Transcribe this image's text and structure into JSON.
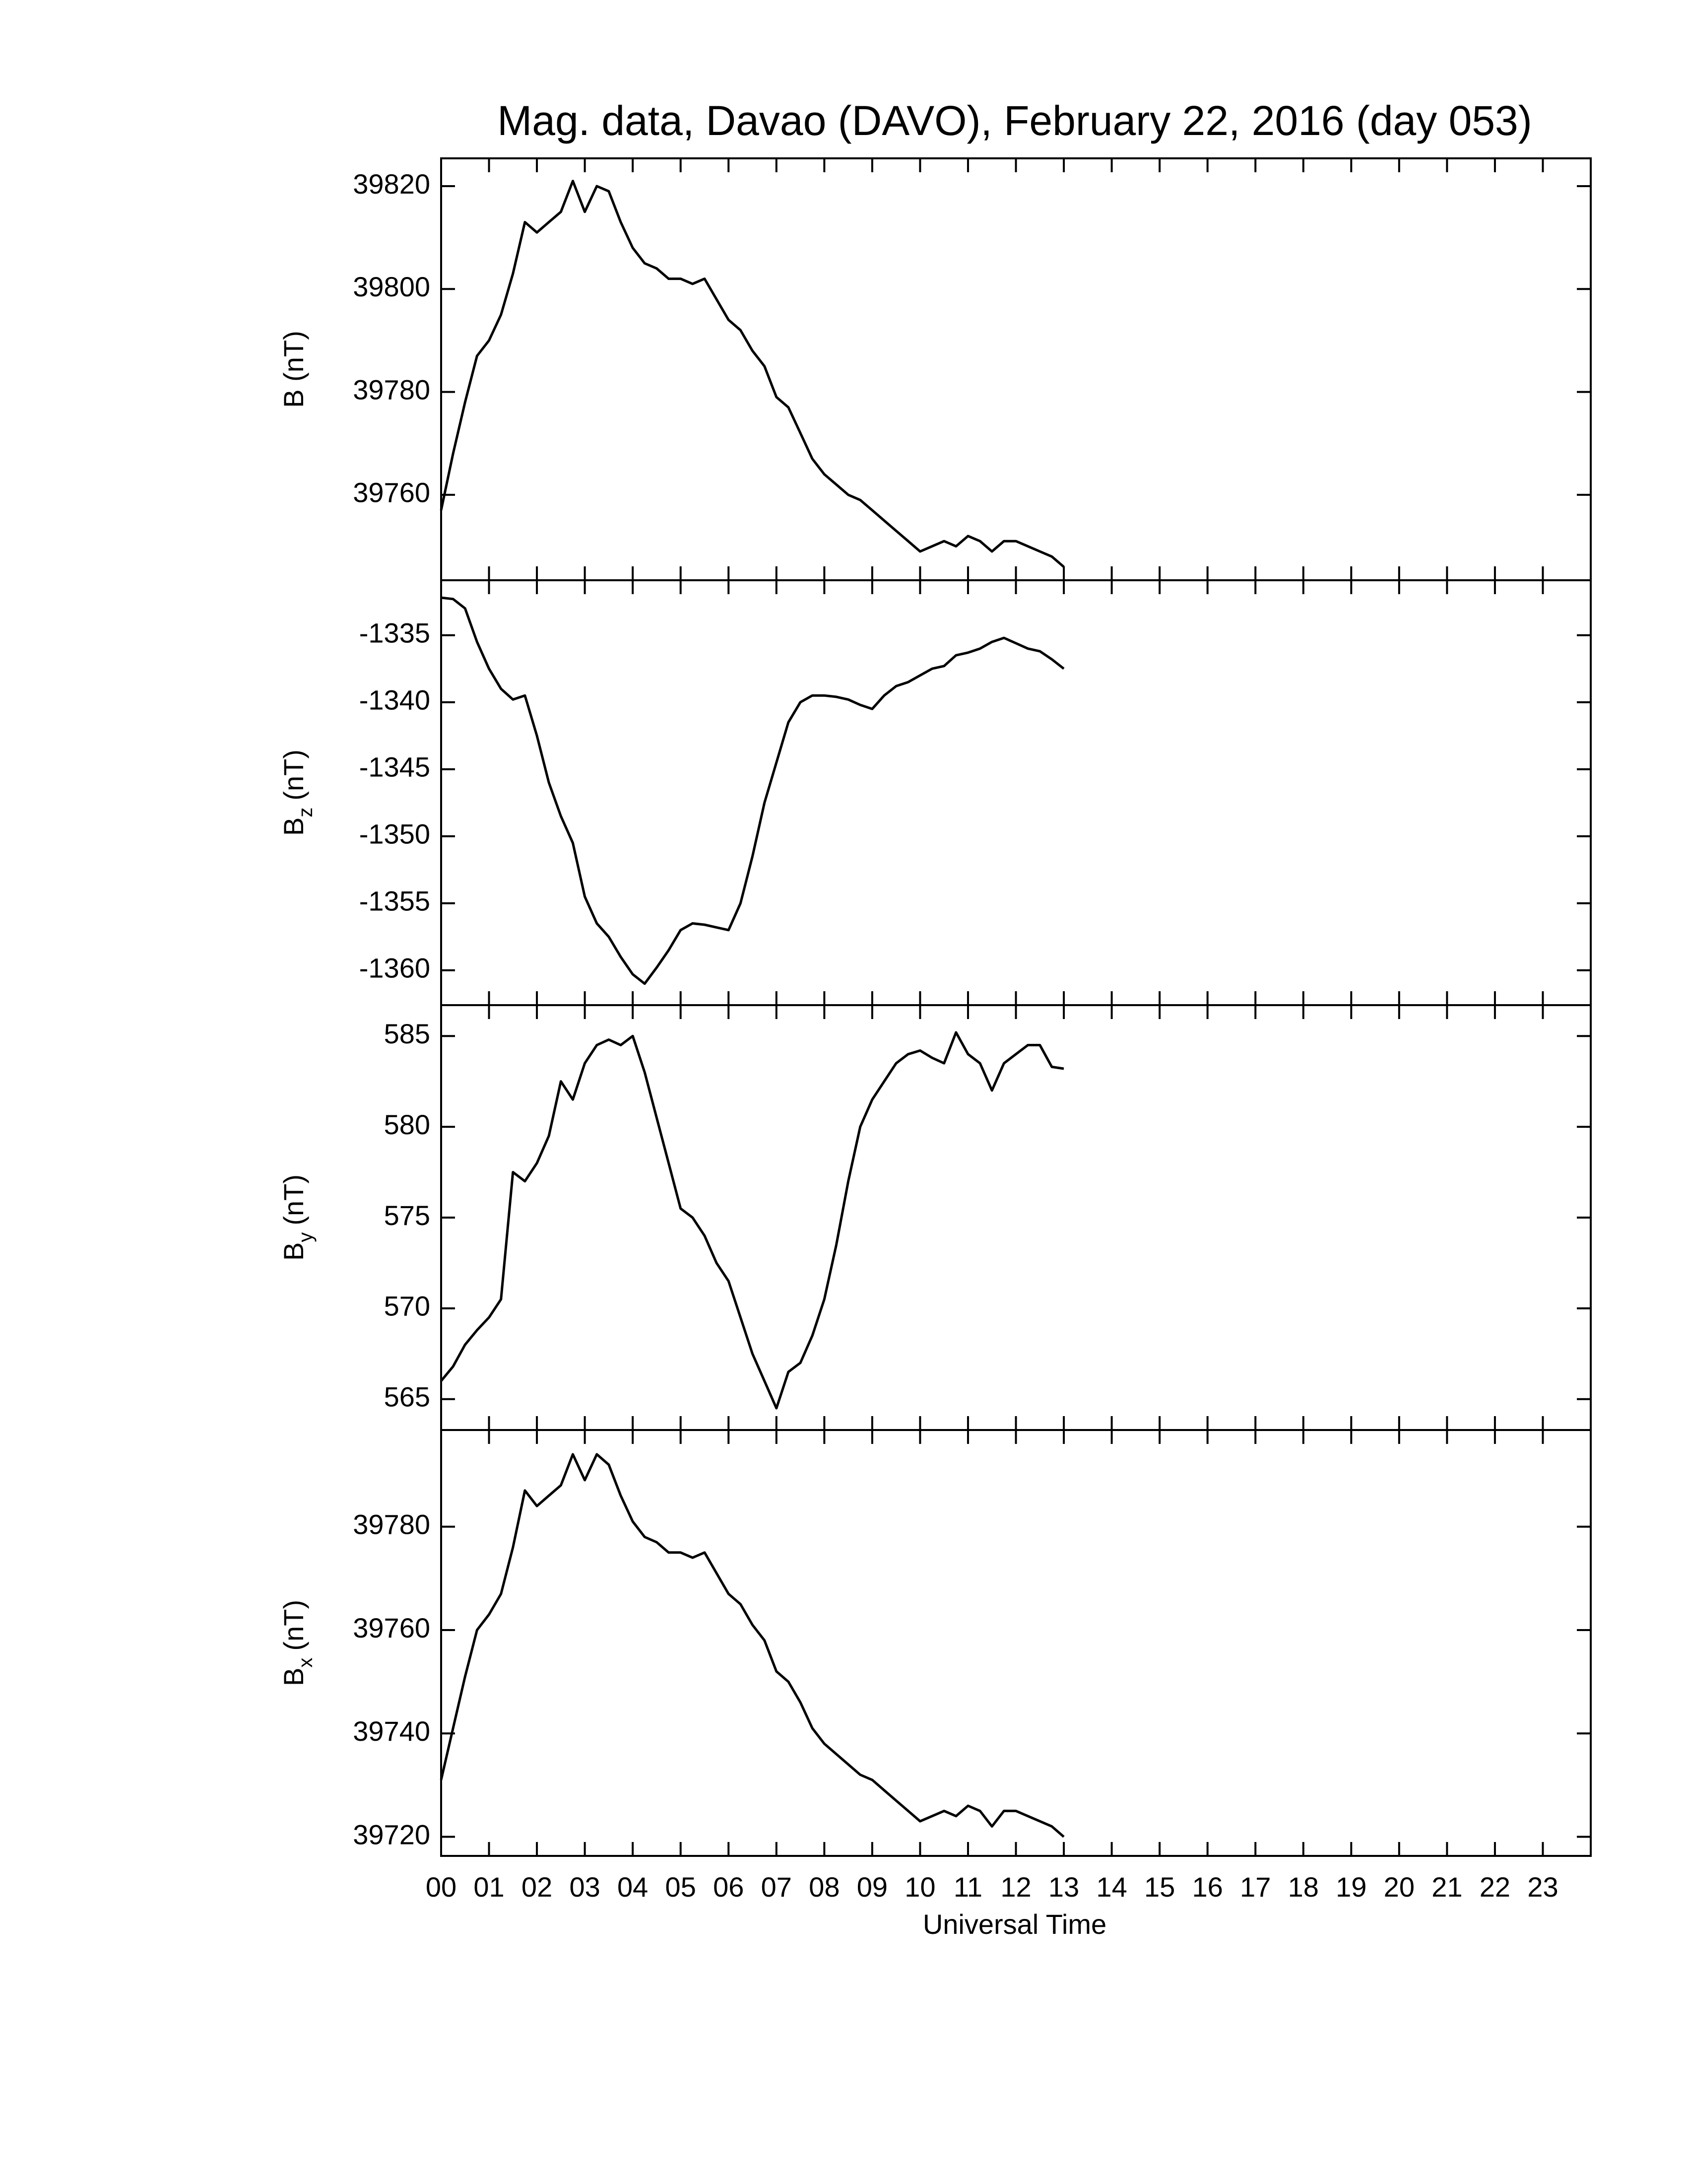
{
  "chart_data": [
    {
      "type": "line",
      "title": "Mag. data, Davao (DAVO), February 22, 2016 (day 053)",
      "ylabel": [
        "B (nT)"
      ],
      "color": "#000000",
      "x": [
        0,
        0.25,
        0.5,
        0.75,
        1,
        1.25,
        1.5,
        1.75,
        2,
        2.25,
        2.5,
        2.75,
        3,
        3.25,
        3.5,
        3.75,
        4,
        4.25,
        4.5,
        4.75,
        5,
        5.25,
        5.5,
        5.75,
        6,
        6.25,
        6.5,
        6.75,
        7,
        7.25,
        7.5,
        7.75,
        8,
        8.25,
        8.5,
        8.75,
        9,
        9.25,
        9.5,
        9.75,
        10,
        10.25,
        10.5,
        10.75,
        11,
        11.25,
        11.5,
        11.75,
        12,
        12.25,
        12.5,
        12.75,
        13
      ],
      "values": [
        39757,
        39768,
        39778,
        39787,
        39790,
        39795,
        39803,
        39813,
        39811,
        39813,
        39815,
        39821,
        39815,
        39820,
        39819,
        39813,
        39808,
        39805,
        39804,
        39802,
        39802,
        39801,
        39802,
        39798,
        39794,
        39792,
        39788,
        39785,
        39779,
        39777,
        39772,
        39767,
        39764,
        39762,
        39760,
        39759,
        39757,
        39755,
        39753,
        39751,
        39749,
        39750,
        39751,
        39750,
        39752,
        39751,
        39749,
        39751,
        39751,
        39750,
        39749,
        39748,
        39746
      ],
      "xlim": [
        0,
        24
      ],
      "ylim": [
        39743.4,
        39825.4
      ],
      "yticks": [
        39760,
        39780,
        39800,
        39820
      ]
    },
    {
      "type": "line",
      "ylabel": [
        "B",
        "z",
        "(nT)"
      ],
      "color": "#000000",
      "x": [
        0,
        0.25,
        0.5,
        0.75,
        1,
        1.25,
        1.5,
        1.75,
        2,
        2.25,
        2.5,
        2.75,
        3,
        3.25,
        3.5,
        3.75,
        4,
        4.25,
        4.5,
        4.75,
        5,
        5.25,
        5.5,
        5.75,
        6,
        6.25,
        6.5,
        6.75,
        7,
        7.25,
        7.5,
        7.75,
        8,
        8.25,
        8.5,
        8.75,
        9,
        9.25,
        9.5,
        9.75,
        10,
        10.25,
        10.5,
        10.75,
        11,
        11.25,
        11.5,
        11.75,
        12,
        12.25,
        12.5,
        12.75,
        13
      ],
      "values": [
        -1332.2,
        -1332.3,
        -1333,
        -1335.5,
        -1337.5,
        -1339,
        -1339.8,
        -1339.5,
        -1342.5,
        -1346,
        -1348.5,
        -1350.5,
        -1354.5,
        -1356.5,
        -1357.5,
        -1359,
        -1360.3,
        -1361,
        -1359.8,
        -1358.5,
        -1357,
        -1356.5,
        -1356.6,
        -1356.8,
        -1357,
        -1355,
        -1351.5,
        -1347.5,
        -1344.5,
        -1341.5,
        -1340,
        -1339.5,
        -1339.5,
        -1339.6,
        -1339.8,
        -1340.2,
        -1340.5,
        -1339.5,
        -1338.8,
        -1338.5,
        -1338,
        -1337.5,
        -1337.3,
        -1336.5,
        -1336.3,
        -1336,
        -1335.5,
        -1335.2,
        -1335.6,
        -1336,
        -1336.2,
        -1336.8,
        -1337.5
      ],
      "xlim": [
        0,
        24
      ],
      "ylim": [
        -1362.6,
        -1330.9
      ],
      "yticks": [
        -1360,
        -1355,
        -1350,
        -1345,
        -1340,
        -1335
      ]
    },
    {
      "type": "line",
      "ylabel": [
        "B",
        "y",
        "(nT)"
      ],
      "color": "#000000",
      "x": [
        0,
        0.25,
        0.5,
        0.75,
        1,
        1.25,
        1.5,
        1.75,
        2,
        2.25,
        2.5,
        2.75,
        3,
        3.25,
        3.5,
        3.75,
        4,
        4.25,
        4.5,
        4.75,
        5,
        5.25,
        5.5,
        5.75,
        6,
        6.25,
        6.5,
        6.75,
        7,
        7.25,
        7.5,
        7.75,
        8,
        8.25,
        8.5,
        8.75,
        9,
        9.25,
        9.5,
        9.75,
        10,
        10.25,
        10.5,
        10.75,
        11,
        11.25,
        11.5,
        11.75,
        12,
        12.25,
        12.5,
        12.75,
        13
      ],
      "values": [
        566,
        566.8,
        568,
        568.8,
        569.5,
        570.5,
        577.5,
        577,
        578,
        579.5,
        582.5,
        581.5,
        583.5,
        584.5,
        584.8,
        584.5,
        585,
        583,
        580.5,
        578,
        575.5,
        575,
        574,
        572.5,
        571.5,
        569.5,
        567.5,
        566,
        564.5,
        566.5,
        567,
        568.5,
        570.5,
        573.5,
        577,
        580,
        581.5,
        582.5,
        583.5,
        584,
        584.2,
        583.8,
        583.5,
        585.2,
        584,
        583.5,
        582,
        583.5,
        584,
        584.5,
        584.5,
        583.3,
        583.2
      ],
      "xlim": [
        0,
        24
      ],
      "ylim": [
        563.3,
        586.7
      ],
      "yticks": [
        565,
        570,
        575,
        580,
        585
      ]
    },
    {
      "type": "line",
      "ylabel": [
        "B",
        "x",
        "(nT)"
      ],
      "color": "#000000",
      "xlabel": "Universal Time",
      "x": [
        0,
        0.25,
        0.5,
        0.75,
        1,
        1.25,
        1.5,
        1.75,
        2,
        2.25,
        2.5,
        2.75,
        3,
        3.25,
        3.5,
        3.75,
        4,
        4.25,
        4.5,
        4.75,
        5,
        5.25,
        5.5,
        5.75,
        6,
        6.25,
        6.5,
        6.75,
        7,
        7.25,
        7.5,
        7.75,
        8,
        8.25,
        8.5,
        8.75,
        9,
        9.25,
        9.5,
        9.75,
        10,
        10.25,
        10.5,
        10.75,
        11,
        11.25,
        11.5,
        11.75,
        12,
        12.25,
        12.5,
        12.75,
        13
      ],
      "values": [
        39731,
        39741,
        39751,
        39760,
        39763,
        39767,
        39776,
        39787,
        39784,
        39786,
        39788,
        39794,
        39789,
        39794,
        39792,
        39786,
        39781,
        39778,
        39777,
        39775,
        39775,
        39774,
        39775,
        39771,
        39767,
        39765,
        39761,
        39758,
        39752,
        39750,
        39746,
        39741,
        39738,
        39736,
        39734,
        39732,
        39731,
        39729,
        39727,
        39725,
        39723,
        39724,
        39725,
        39724,
        39726,
        39725,
        39722,
        39725,
        39725,
        39724,
        39723,
        39722,
        39720
      ],
      "xlim": [
        0,
        24
      ],
      "ylim": [
        39716.3,
        39798.7
      ],
      "yticks": [
        39720,
        39740,
        39760,
        39780
      ],
      "xticks": [
        {
          "value": 0,
          "label": "00"
        },
        {
          "value": 1,
          "label": "01"
        },
        {
          "value": 2,
          "label": "02"
        },
        {
          "value": 3,
          "label": "03"
        },
        {
          "value": 4,
          "label": "04"
        },
        {
          "value": 5,
          "label": "05"
        },
        {
          "value": 6,
          "label": "06"
        },
        {
          "value": 7,
          "label": "07"
        },
        {
          "value": 8,
          "label": "08"
        },
        {
          "value": 9,
          "label": "09"
        },
        {
          "value": 10,
          "label": "10"
        },
        {
          "value": 11,
          "label": "11"
        },
        {
          "value": 12,
          "label": "12"
        },
        {
          "value": 13,
          "label": "13"
        },
        {
          "value": 14,
          "label": "14"
        },
        {
          "value": 15,
          "label": "15"
        },
        {
          "value": 16,
          "label": "16"
        },
        {
          "value": 17,
          "label": "17"
        },
        {
          "value": 18,
          "label": "18"
        },
        {
          "value": 19,
          "label": "19"
        },
        {
          "value": 20,
          "label": "20"
        },
        {
          "value": 21,
          "label": "21"
        },
        {
          "value": 22,
          "label": "22"
        },
        {
          "value": 23,
          "label": "23"
        }
      ]
    }
  ]
}
